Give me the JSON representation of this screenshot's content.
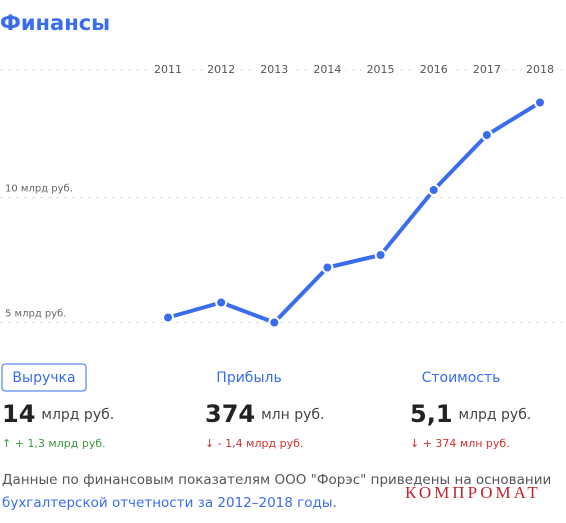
{
  "header": {
    "title": "Финансы"
  },
  "chart_data": {
    "type": "line",
    "categories": [
      "2011",
      "2012",
      "2013",
      "2014",
      "2015",
      "2016",
      "2017",
      "2018"
    ],
    "values": [
      5.2,
      5.8,
      5.0,
      7.2,
      7.7,
      10.3,
      12.5,
      13.8
    ],
    "color": "#3a6cf0",
    "ylim": [
      4.3,
      15.1
    ],
    "yticks": [
      {
        "value": 5,
        "label": "5 млрд руб."
      },
      {
        "value": 10,
        "label": "10 млрд руб."
      }
    ],
    "grid": true
  },
  "tabs": [
    "Выручка",
    "Прибыль",
    "Стоимость"
  ],
  "metrics": [
    {
      "value": "14",
      "unit": "млрд руб.",
      "change": "↑ + 1,3 млрд руб."
    },
    {
      "value": "374",
      "unit": "млн руб.",
      "change": "↓ - 1,4 млрд руб."
    },
    {
      "value": "5,1",
      "unit": "млрд руб.",
      "change": "↓ + 374 млн руб."
    }
  ],
  "footer": {
    "text": "Данные по финансовым показателям ООО \"Форэс\" приведены на основании",
    "link": "бухгалтерской отчетности за 2012–2018 годы",
    "end": "."
  },
  "watermark": "КОМПРОМАТ"
}
